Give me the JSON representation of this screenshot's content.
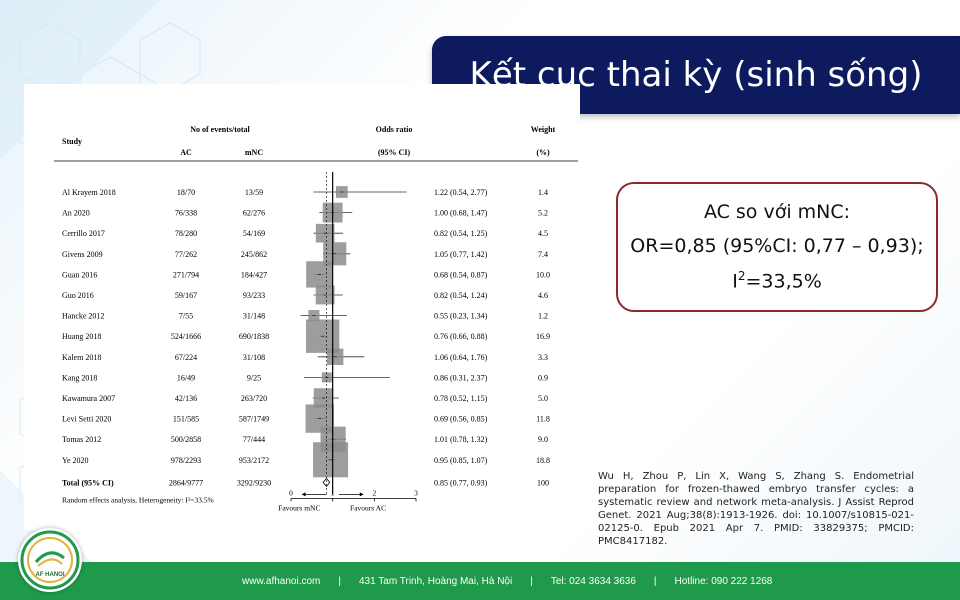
{
  "slide": {
    "title": "Kết cục thai kỳ (sinh sống)",
    "result_line1": "AC so với mNC:",
    "result_line2": "OR=0,85 (95%CI: 0,77 – 0,93);",
    "result_line3_prefix": "I",
    "result_line3_sup": "2",
    "result_line3_suffix": "=33,5%",
    "citation": "Wu H, Zhou P, Lin X, Wang S, Zhang S. Endometrial preparation for frozen-thawed embryo transfer cycles: a systematic review and network meta-analysis. J Assist Reprod Genet. 2021 Aug;38(8):1913-1926. doi: 10.1007/s10815-021-02125-0. Epub 2021 Apr 7. PMID: 33829375; PMCID: PMC8417182."
  },
  "footer": {
    "website": "www.afhanoi.com",
    "address": "431 Tam Trinh, Hoàng Mai, Hà Nội",
    "phone": "Tel: 024 3634 3636",
    "hotline": "Hotline: 090 222 1268",
    "separator": "|",
    "logo_text": "AF HANOI"
  },
  "chart_data": {
    "type": "forest",
    "headers": {
      "study": "Study",
      "events": "No of events/total",
      "ac": "AC",
      "mnc": "mNC",
      "odds_ratio": "Odds ratio",
      "ci": "(95% CI)",
      "weight": "Weight",
      "weight_unit": "(%)"
    },
    "studies": [
      {
        "study": "Al Krayem 2018",
        "ac": "18/70",
        "mnc": "13/59",
        "or": 1.22,
        "lo": 0.54,
        "hi": 2.77,
        "or_text": "1.22 (0.54, 2.77)",
        "weight": 1.4,
        "weight_text": "1.4"
      },
      {
        "study": "An 2020",
        "ac": "76/338",
        "mnc": "62/276",
        "or": 1.0,
        "lo": 0.68,
        "hi": 1.47,
        "or_text": "1.00 (0.68, 1.47)",
        "weight": 5.2,
        "weight_text": "5.2"
      },
      {
        "study": "Cerrillo 2017",
        "ac": "78/280",
        "mnc": "54/169",
        "or": 0.82,
        "lo": 0.54,
        "hi": 1.25,
        "or_text": "0.82 (0.54, 1.25)",
        "weight": 4.5,
        "weight_text": "4.5"
      },
      {
        "study": "Givens 2009",
        "ac": "77/262",
        "mnc": "245/862",
        "or": 1.05,
        "lo": 0.77,
        "hi": 1.42,
        "or_text": "1.05 (0.77, 1.42)",
        "weight": 7.4,
        "weight_text": "7.4"
      },
      {
        "study": "Guan 2016",
        "ac": "271/794",
        "mnc": "184/427",
        "or": 0.68,
        "lo": 0.54,
        "hi": 0.87,
        "or_text": "0.68 (0.54, 0.87)",
        "weight": 10.0,
        "weight_text": "10.0"
      },
      {
        "study": "Guo 2016",
        "ac": "59/167",
        "mnc": "93/233",
        "or": 0.82,
        "lo": 0.54,
        "hi": 1.24,
        "or_text": "0.82 (0.54, 1.24)",
        "weight": 4.6,
        "weight_text": "4.6"
      },
      {
        "study": "Hancke 2012",
        "ac": "7/55",
        "mnc": "31/148",
        "or": 0.55,
        "lo": 0.23,
        "hi": 1.34,
        "or_text": "0.55 (0.23, 1.34)",
        "weight": 1.2,
        "weight_text": "1.2"
      },
      {
        "study": "Huang 2018",
        "ac": "524/1666",
        "mnc": "690/1838",
        "or": 0.76,
        "lo": 0.66,
        "hi": 0.88,
        "or_text": "0.76 (0.66, 0.88)",
        "weight": 16.9,
        "weight_text": "16.9"
      },
      {
        "study": "Kalem 2018",
        "ac": "67/224",
        "mnc": "31/108",
        "or": 1.06,
        "lo": 0.64,
        "hi": 1.76,
        "or_text": "1.06 (0.64, 1.76)",
        "weight": 3.3,
        "weight_text": "3.3"
      },
      {
        "study": "Kang 2018",
        "ac": "16/49",
        "mnc": "9/25",
        "or": 0.86,
        "lo": 0.31,
        "hi": 2.37,
        "or_text": "0.86 (0.31, 2.37)",
        "weight": 0.9,
        "weight_text": "0.9"
      },
      {
        "study": "Kawamura 2007",
        "ac": "42/136",
        "mnc": "263/720",
        "or": 0.78,
        "lo": 0.52,
        "hi": 1.15,
        "or_text": "0.78 (0.52, 1.15)",
        "weight": 5.0,
        "weight_text": "5.0"
      },
      {
        "study": "Levi Setti 2020",
        "ac": "151/585",
        "mnc": "587/1749",
        "or": 0.69,
        "lo": 0.56,
        "hi": 0.85,
        "or_text": "0.69 (0.56, 0.85)",
        "weight": 11.8,
        "weight_text": "11.8"
      },
      {
        "study": "Tomas 2012",
        "ac": "500/2858",
        "mnc": "77/444",
        "or": 1.01,
        "lo": 0.78,
        "hi": 1.32,
        "or_text": "1.01 (0.78, 1.32)",
        "weight": 9.0,
        "weight_text": "9.0"
      },
      {
        "study": "Ye 2020",
        "ac": "978/2293",
        "mnc": "953/2172",
        "or": 0.95,
        "lo": 0.85,
        "hi": 1.07,
        "or_text": "0.95 (0.85, 1.07)",
        "weight": 18.8,
        "weight_text": "18.8"
      }
    ],
    "total": {
      "study": "Total (95% CI)",
      "ac": "2864/9777",
      "mnc": "3292/9230",
      "or": 0.85,
      "lo": 0.77,
      "hi": 0.93,
      "or_text": "0.85 (0.77, 0.93)",
      "weight": 100,
      "weight_text": "100"
    },
    "heterogeneity": "Random effects analysis, Heterogeneity: I²=33.5%",
    "x_ticks": [
      0,
      1,
      2,
      3
    ],
    "xlim": [
      0,
      3
    ],
    "favours_left": "Favours mNC",
    "favours_right": "Favours AC"
  }
}
